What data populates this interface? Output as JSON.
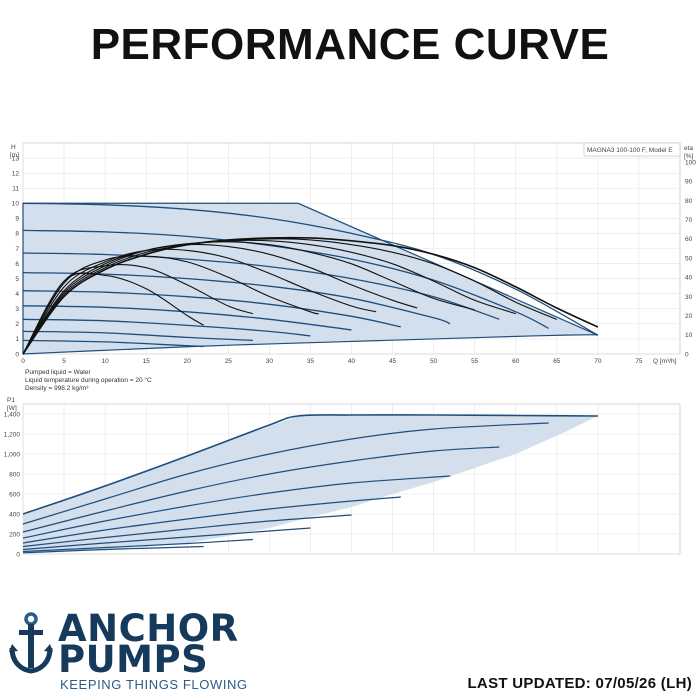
{
  "page": {
    "title": "PERFORMANCE CURVE",
    "last_updated": "LAST UPDATED: 07/05/26 (LH)"
  },
  "brand": {
    "name_line1": "ANCHOR",
    "name_line2": "PUMPS",
    "tagline": "KEEPING THINGS FLOWING",
    "colors": {
      "primary": "#163a5c",
      "accent": "#2a5c8a"
    },
    "icon": "anchor-icon"
  },
  "colors": {
    "envelope_fill": "#d3dfec",
    "envelope_edge": "#1f4e7d",
    "curve": "#1f4e7d",
    "efficiency_curve": "#111111",
    "grid": "#e4e4e4"
  },
  "chart_data": [
    {
      "type": "line",
      "title": "",
      "legend_box": "MAGNA3 100-100 F, Model E",
      "xlabel": "Q [m³/h]",
      "ylabel": "H [m]",
      "y2label": "eta [%]",
      "x_ticks": [
        0,
        5,
        10,
        15,
        20,
        25,
        30,
        35,
        40,
        45,
        50,
        55,
        60,
        65,
        70,
        75
      ],
      "y_ticks": [
        0,
        1,
        2,
        3,
        4,
        5,
        6,
        7,
        8,
        9,
        10,
        11,
        12,
        13
      ],
      "y2_ticks": [
        0,
        10,
        20,
        30,
        40,
        50,
        60,
        70,
        80,
        90,
        100
      ],
      "xlim": [
        0,
        80
      ],
      "ylim": [
        0,
        14
      ],
      "y2lim": [
        0,
        110
      ],
      "grid": true,
      "envelope": {
        "x": [
          0,
          33.5,
          70,
          69.5,
          66,
          62,
          56,
          50,
          44,
          38,
          32,
          26,
          20,
          14,
          8,
          3,
          0
        ],
        "y": [
          10,
          10,
          1.25,
          1.28,
          1.25,
          1.2,
          1.1,
          1.0,
          0.9,
          0.8,
          0.7,
          0.6,
          0.48,
          0.34,
          0.2,
          0.08,
          0
        ]
      },
      "head_curves": [
        {
          "x": [
            0,
            10,
            20,
            30,
            40,
            50,
            60,
            70
          ],
          "y": [
            10,
            9.9,
            9.6,
            9.0,
            8.0,
            6.6,
            4.3,
            1.25
          ]
        },
        {
          "x": [
            0,
            10,
            20,
            30,
            40,
            50,
            60,
            64
          ],
          "y": [
            8.2,
            8.1,
            7.8,
            7.2,
            6.3,
            4.9,
            2.8,
            1.7
          ]
        },
        {
          "x": [
            0,
            10,
            20,
            30,
            40,
            50,
            58
          ],
          "y": [
            6.7,
            6.6,
            6.3,
            5.8,
            5.0,
            3.8,
            2.3
          ]
        },
        {
          "x": [
            0,
            10,
            20,
            30,
            40,
            50,
            52
          ],
          "y": [
            5.4,
            5.3,
            5.0,
            4.5,
            3.7,
            2.4,
            2.0
          ]
        },
        {
          "x": [
            0,
            10,
            20,
            30,
            40,
            46
          ],
          "y": [
            4.2,
            4.1,
            3.8,
            3.3,
            2.5,
            1.8
          ]
        },
        {
          "x": [
            0,
            10,
            20,
            30,
            40
          ],
          "y": [
            3.2,
            3.1,
            2.8,
            2.3,
            1.6
          ]
        },
        {
          "x": [
            0,
            10,
            20,
            30,
            35
          ],
          "y": [
            2.3,
            2.2,
            1.9,
            1.5,
            1.2
          ]
        },
        {
          "x": [
            0,
            10,
            20,
            28
          ],
          "y": [
            1.5,
            1.4,
            1.1,
            0.9
          ]
        },
        {
          "x": [
            0,
            10,
            20,
            22
          ],
          "y": [
            0.9,
            0.8,
            0.55,
            0.5
          ]
        }
      ],
      "efficiency_curves": [
        {
          "x": [
            0,
            5,
            10,
            15,
            20,
            25,
            30,
            35,
            40,
            45,
            50,
            55,
            60,
            65,
            70
          ],
          "y": [
            0,
            30,
            44,
            52,
            57,
            59.5,
            60.5,
            60.5,
            59,
            56.5,
            52,
            45,
            35,
            24,
            14
          ]
        },
        {
          "x": [
            0,
            5,
            10,
            15,
            20,
            25,
            30,
            35,
            40,
            45,
            50,
            55,
            60,
            65
          ],
          "y": [
            0,
            30,
            44,
            52,
            57,
            59,
            60,
            59.5,
            57,
            53,
            47,
            38,
            27,
            18
          ]
        },
        {
          "x": [
            0,
            5,
            10,
            15,
            20,
            25,
            30,
            35,
            40,
            45,
            50,
            55,
            60
          ],
          "y": [
            0,
            31,
            45,
            53,
            57,
            59,
            59,
            57,
            53,
            47,
            38,
            28,
            21
          ]
        },
        {
          "x": [
            0,
            5,
            10,
            15,
            20,
            25,
            30,
            35,
            40,
            45,
            50,
            55
          ],
          "y": [
            0,
            32,
            46,
            54,
            57.5,
            58.5,
            57,
            53,
            47,
            38,
            29,
            23
          ]
        },
        {
          "x": [
            0,
            5,
            10,
            15,
            20,
            25,
            30,
            35,
            40,
            45,
            48
          ],
          "y": [
            0,
            33,
            47,
            54,
            57,
            56,
            52,
            45,
            36,
            28,
            24
          ]
        },
        {
          "x": [
            0,
            5,
            10,
            15,
            20,
            25,
            30,
            35,
            40,
            43
          ],
          "y": [
            0,
            35,
            48,
            54,
            54,
            50,
            42,
            33,
            25,
            22
          ]
        },
        {
          "x": [
            0,
            5,
            10,
            15,
            20,
            25,
            30,
            35,
            36
          ],
          "y": [
            0,
            37,
            49,
            51,
            48,
            40,
            30,
            22,
            21
          ]
        },
        {
          "x": [
            0,
            5,
            10,
            15,
            20,
            25,
            28
          ],
          "y": [
            0,
            38,
            46,
            45,
            36,
            25,
            21
          ]
        },
        {
          "x": [
            0,
            5,
            10,
            15,
            20,
            22
          ],
          "y": [
            0,
            38,
            41,
            34,
            20,
            15
          ]
        }
      ],
      "notes": [
        "Pumped liquid = Water",
        "Liquid temperature during operation = 20 °C",
        "Density = 998.2 kg/m³"
      ]
    },
    {
      "type": "line",
      "title": "",
      "ylabel": "P1 [W]",
      "xlabel": "",
      "xlim": [
        0,
        80
      ],
      "ylim": [
        0,
        1500
      ],
      "y_ticks": [
        0,
        200,
        400,
        600,
        800,
        1000,
        1200,
        1400
      ],
      "y_tick_labels": [
        "0",
        "200",
        "400",
        "600",
        "800",
        "1,000",
        "1,200",
        "1,400"
      ],
      "grid": true,
      "envelope": {
        "x": [
          0,
          33.5,
          70,
          66,
          60,
          55,
          50,
          45,
          40,
          35,
          30,
          25,
          20,
          15,
          10,
          5,
          0
        ],
        "y": [
          400,
          1380,
          1380,
          1220,
          1000,
          860,
          720,
          600,
          470,
          370,
          260,
          180,
          110,
          70,
          40,
          20,
          0
        ]
      },
      "power_curves": [
        {
          "x": [
            0,
            10,
            20,
            30,
            33.5,
            40,
            50,
            60,
            70
          ],
          "y": [
            400,
            680,
            980,
            1290,
            1380,
            1390,
            1390,
            1385,
            1380
          ]
        },
        {
          "x": [
            0,
            10,
            20,
            30,
            40,
            50,
            64
          ],
          "y": [
            300,
            550,
            800,
            1000,
            1150,
            1250,
            1310
          ]
        },
        {
          "x": [
            0,
            10,
            20,
            30,
            40,
            50,
            58
          ],
          "y": [
            220,
            430,
            630,
            800,
            930,
            1030,
            1070
          ]
        },
        {
          "x": [
            0,
            10,
            20,
            30,
            40,
            52
          ],
          "y": [
            160,
            330,
            480,
            610,
            710,
            780
          ]
        },
        {
          "x": [
            0,
            10,
            20,
            30,
            40,
            46
          ],
          "y": [
            110,
            240,
            350,
            450,
            530,
            570
          ]
        },
        {
          "x": [
            0,
            10,
            20,
            30,
            40
          ],
          "y": [
            75,
            165,
            250,
            330,
            390
          ]
        },
        {
          "x": [
            0,
            10,
            20,
            30,
            35
          ],
          "y": [
            45,
            110,
            170,
            230,
            260
          ]
        },
        {
          "x": [
            0,
            10,
            20,
            28
          ],
          "y": [
            25,
            65,
            105,
            145
          ]
        },
        {
          "x": [
            0,
            10,
            22
          ],
          "y": [
            12,
            45,
            75
          ]
        }
      ]
    }
  ]
}
